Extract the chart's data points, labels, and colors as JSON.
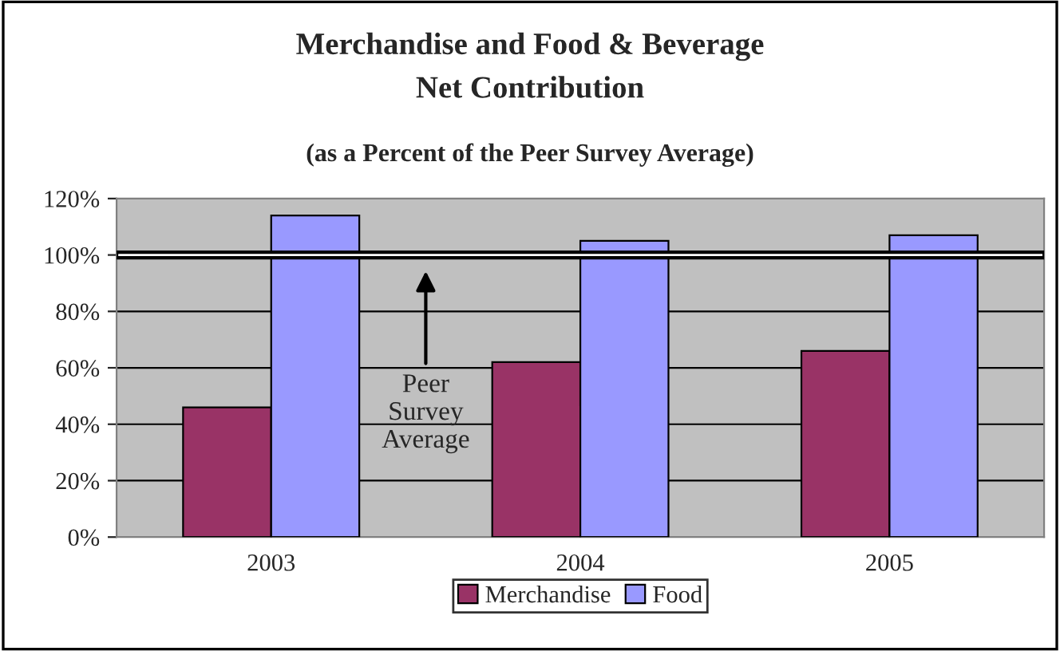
{
  "chart_data": {
    "type": "bar",
    "title": "Merchandise and Food & Beverage\nNet Contribution",
    "subtitle": "(as a Percent of the Peer Survey Average)",
    "categories": [
      "2003",
      "2004",
      "2005"
    ],
    "series": [
      {
        "name": "Merchandise",
        "color": "#993366",
        "values": [
          46,
          62,
          66
        ]
      },
      {
        "name": "Food",
        "color": "#9999ff",
        "values": [
          114,
          105,
          107
        ]
      }
    ],
    "ylim": [
      0,
      120
    ],
    "yticks": [
      {
        "value": 0,
        "label": "0%"
      },
      {
        "value": 20,
        "label": "20%"
      },
      {
        "value": 40,
        "label": "40%"
      },
      {
        "value": 60,
        "label": "60%"
      },
      {
        "value": 80,
        "label": "80%"
      },
      {
        "value": 100,
        "label": "100%"
      },
      {
        "value": 120,
        "label": "120%"
      }
    ],
    "bands": [
      {
        "axis": "y",
        "from": 99,
        "to": 101,
        "color": "#ffffff"
      }
    ],
    "annotations": [
      "Peer\nSurvey\nAverage"
    ],
    "grid": "y",
    "legend": "bottom"
  }
}
